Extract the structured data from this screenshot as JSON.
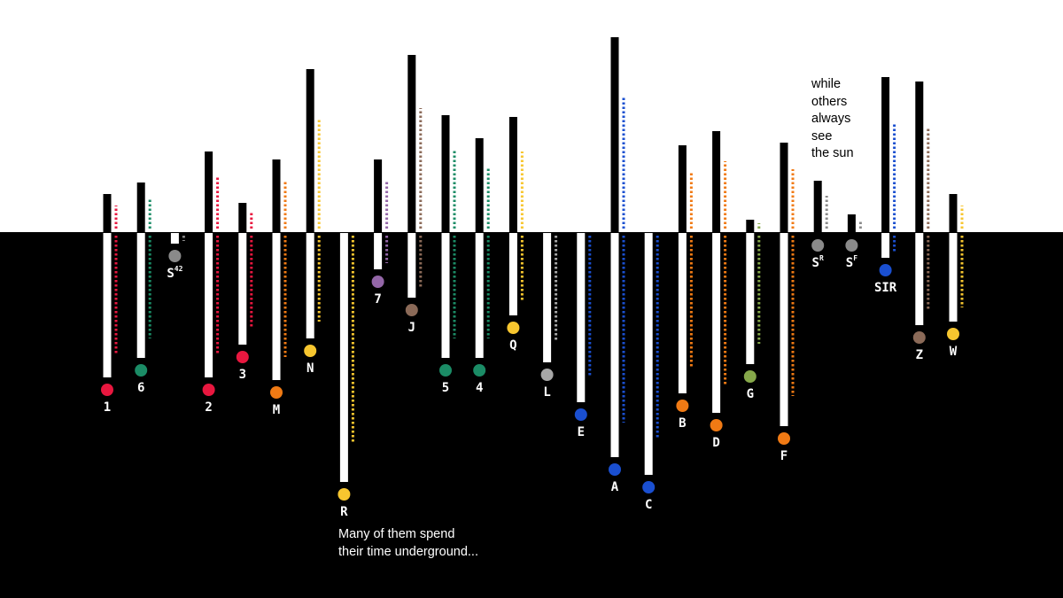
{
  "chart_data": {
    "type": "bar",
    "annotations": {
      "underground": [
        "Many of them spend",
        "their time underground..."
      ],
      "above": [
        "while",
        "others",
        "always",
        "see",
        "the sun"
      ]
    },
    "series": [
      {
        "label": "1",
        "sup": "",
        "color": "#e8173f",
        "above": 43,
        "below": 163
      },
      {
        "label": "6",
        "sup": "",
        "color": "#1b8c66",
        "above": 56,
        "below": 141
      },
      {
        "label": "S",
        "sup": "42",
        "color": "#8a8a8a",
        "above": 0,
        "below": 12
      },
      {
        "label": "2",
        "sup": "",
        "color": "#e8173f",
        "above": 91,
        "below": 163
      },
      {
        "label": "3",
        "sup": "",
        "color": "#e8173f",
        "above": 33,
        "below": 126
      },
      {
        "label": "M",
        "sup": "",
        "color": "#f07a14",
        "above": 82,
        "below": 166
      },
      {
        "label": "N",
        "sup": "",
        "color": "#f7c62f",
        "above": 184,
        "below": 119
      },
      {
        "label": "R",
        "sup": "",
        "color": "#f7c62f",
        "above": 0,
        "below": 281
      },
      {
        "label": "7",
        "sup": "",
        "color": "#9467a8",
        "above": 82,
        "below": 41
      },
      {
        "label": "J",
        "sup": "",
        "color": "#8b6a58",
        "above": 200,
        "below": 73
      },
      {
        "label": "5",
        "sup": "",
        "color": "#1b8c66",
        "above": 132,
        "below": 141
      },
      {
        "label": "4",
        "sup": "",
        "color": "#1b8c66",
        "above": 106,
        "below": 141
      },
      {
        "label": "Q",
        "sup": "",
        "color": "#f7c62f",
        "above": 130,
        "below": 93
      },
      {
        "label": "L",
        "sup": "",
        "color": "#a7a7a7",
        "above": 0,
        "below": 146
      },
      {
        "label": "E",
        "sup": "",
        "color": "#1a4fd0",
        "above": 0,
        "below": 191
      },
      {
        "label": "A",
        "sup": "",
        "color": "#1a4fd0",
        "above": 220,
        "below": 253
      },
      {
        "label": "C",
        "sup": "",
        "color": "#1a4fd0",
        "above": 0,
        "below": 273
      },
      {
        "label": "B",
        "sup": "",
        "color": "#f07a14",
        "above": 98,
        "below": 181
      },
      {
        "label": "D",
        "sup": "",
        "color": "#f07a14",
        "above": 114,
        "below": 203
      },
      {
        "label": "G",
        "sup": "",
        "color": "#86a84a",
        "above": 14,
        "below": 148
      },
      {
        "label": "F",
        "sup": "",
        "color": "#f07a14",
        "above": 101,
        "below": 218
      },
      {
        "label": "S",
        "sup": "R",
        "color": "#8a8a8a",
        "above": 58,
        "below": 0
      },
      {
        "label": "S",
        "sup": "F",
        "color": "#8a8a8a",
        "above": 20,
        "below": 0
      },
      {
        "label": "SIR",
        "sup": "",
        "color": "#1a4fd0",
        "above": 175,
        "below": 28
      },
      {
        "label": "Z",
        "sup": "",
        "color": "#8b6a58",
        "above": 170,
        "below": 104
      },
      {
        "label": "W",
        "sup": "",
        "color": "#f7c62f",
        "above": 43,
        "below": 100
      }
    ]
  }
}
